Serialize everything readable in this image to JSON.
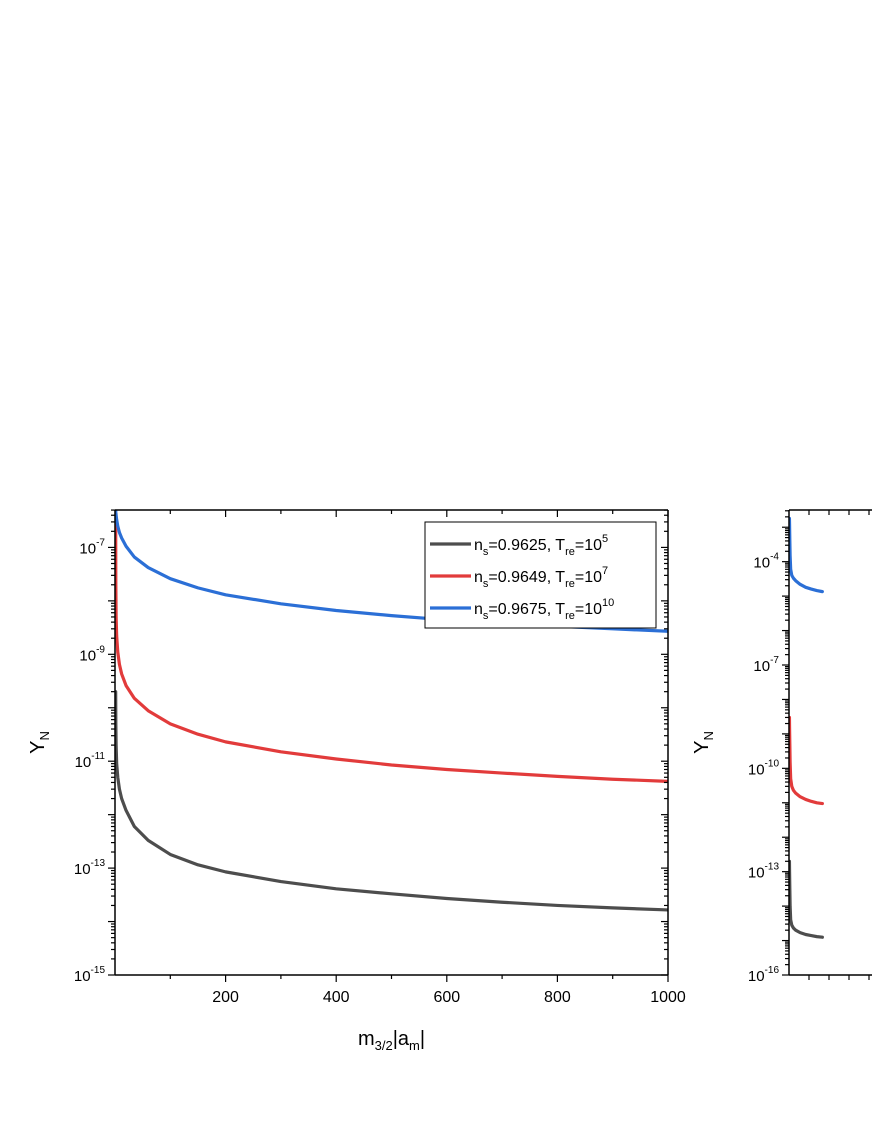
{
  "chart_data": [
    {
      "type": "line",
      "xlabel": "m",
      "xlabel_sub": "3/2",
      "xlabel_mid": "|a",
      "xlabel_sub2": "m",
      "xlabel_end": "|",
      "ylabel": "Y",
      "ylabel_sub": "N",
      "xlim": [
        0,
        1000
      ],
      "ylim_log10": [
        -15,
        -6.3
      ],
      "y_scale": "log",
      "x_ticks": [
        200,
        400,
        600,
        800,
        1000
      ],
      "x_tick_labels": [
        "200",
        "400",
        "600",
        "800",
        "1000"
      ],
      "y_ticks": [
        {
          "exp": -15,
          "base": "10",
          "sup": "-15"
        },
        {
          "exp": -13,
          "base": "10",
          "sup": "-13"
        },
        {
          "exp": -11,
          "base": "10",
          "sup": "-11"
        },
        {
          "exp": -9,
          "base": "10",
          "sup": "-9"
        },
        {
          "exp": -7,
          "base": "10",
          "sup": "-7"
        }
      ],
      "legend_position": "top-right",
      "series": [
        {
          "name_parts": [
            "n",
            "s",
            "=0.9625, T",
            "re",
            "=10",
            "5"
          ],
          "color": "#4d4d4d",
          "x": [
            1.2,
            1.5,
            2,
            3,
            5,
            8,
            12,
            20,
            35,
            60,
            100,
            150,
            200,
            300,
            400,
            500,
            600,
            700,
            800,
            900,
            1000
          ],
          "y": [
            2e-10,
            5e-11,
            2e-11,
            9e-12,
            5e-12,
            3e-12,
            2e-12,
            1.2e-12,
            6e-13,
            3.3e-13,
            1.8e-13,
            1.15e-13,
            8.5e-14,
            5.6e-14,
            4.1e-14,
            3.3e-14,
            2.7e-14,
            2.3e-14,
            2e-14,
            1.8e-14,
            1.65e-14
          ]
        },
        {
          "name_parts": [
            "n",
            "s",
            "=0.9649, T",
            "re",
            "=10",
            "7"
          ],
          "color": "#e23b3b",
          "x": [
            1.2,
            1.5,
            2,
            3,
            5,
            8,
            12,
            20,
            35,
            60,
            100,
            150,
            200,
            300,
            400,
            500,
            600,
            700,
            800,
            900,
            1000
          ],
          "y": [
            3e-07,
            2e-08,
            5e-09,
            2.2e-09,
            1.1e-09,
            6.5e-10,
            4.3e-10,
            2.6e-10,
            1.5e-10,
            8.8e-11,
            5e-11,
            3.2e-11,
            2.3e-11,
            1.5e-11,
            1.1e-11,
            8.5e-12,
            7e-12,
            6e-12,
            5.2e-12,
            4.6e-12,
            4.2e-12
          ]
        },
        {
          "name_parts": [
            "n",
            "s",
            "=0.9675, T",
            "re",
            "=10",
            "10"
          ],
          "color": "#2b6fd6",
          "x": [
            1.2,
            1.5,
            2,
            3,
            5,
            8,
            12,
            20,
            35,
            60,
            100,
            150,
            200,
            300,
            400,
            500,
            600,
            700,
            800,
            900,
            1000
          ],
          "y": [
            5e-07,
            4.5e-07,
            4e-07,
            3.3e-07,
            2.5e-07,
            1.9e-07,
            1.5e-07,
            1.05e-07,
            6.6e-08,
            4.2e-08,
            2.6e-08,
            1.75e-08,
            1.3e-08,
            8.8e-09,
            6.6e-09,
            5.3e-09,
            4.4e-09,
            3.8e-09,
            3.35e-09,
            3e-09,
            2.7e-09
          ]
        }
      ]
    },
    {
      "type": "line",
      "ylabel": "Y",
      "ylabel_sub": "N",
      "xlim": [
        0,
        1000
      ],
      "ylim_log10": [
        -16,
        -2.5
      ],
      "y_scale": "log",
      "y_ticks": [
        {
          "exp": -16,
          "base": "10",
          "sup": "-16"
        },
        {
          "exp": -13,
          "base": "10",
          "sup": "-13"
        },
        {
          "exp": -10,
          "base": "10",
          "sup": "-10"
        },
        {
          "exp": -7,
          "base": "10",
          "sup": "-7"
        },
        {
          "exp": -4,
          "base": "10",
          "sup": "-4"
        }
      ],
      "series": [
        {
          "color": "#2b6fd6",
          "x": [
            0.8,
            1,
            1.5,
            2,
            3,
            5,
            8,
            12,
            20,
            30,
            40,
            50,
            60
          ],
          "y": [
            0.0018,
            0.0012,
            0.0004,
            0.00015,
            6e-05,
            4e-05,
            3.3e-05,
            2.8e-05,
            2.2e-05,
            1.8e-05,
            1.6e-05,
            1.45e-05,
            1.35e-05
          ]
        },
        {
          "color": "#e23b3b",
          "x": [
            0.8,
            1,
            1.5,
            2,
            3,
            5,
            8,
            12,
            20,
            30,
            40,
            50,
            60
          ],
          "y": [
            3e-09,
            1.5e-09,
            5e-10,
            1.5e-10,
            5e-11,
            3e-11,
            2.3e-11,
            1.9e-11,
            1.5e-11,
            1.25e-11,
            1.1e-11,
            1e-11,
            9.5e-12
          ]
        },
        {
          "color": "#4d4d4d",
          "x": [
            0.8,
            1,
            1.5,
            2,
            3,
            5,
            8,
            12,
            20,
            30,
            40,
            50,
            60
          ],
          "y": [
            2e-13,
            1e-13,
            3e-14,
            1e-14,
            4e-15,
            2.8e-15,
            2.3e-15,
            2e-15,
            1.7e-15,
            1.5e-15,
            1.4e-15,
            1.3e-15,
            1.25e-15
          ]
        }
      ]
    }
  ]
}
